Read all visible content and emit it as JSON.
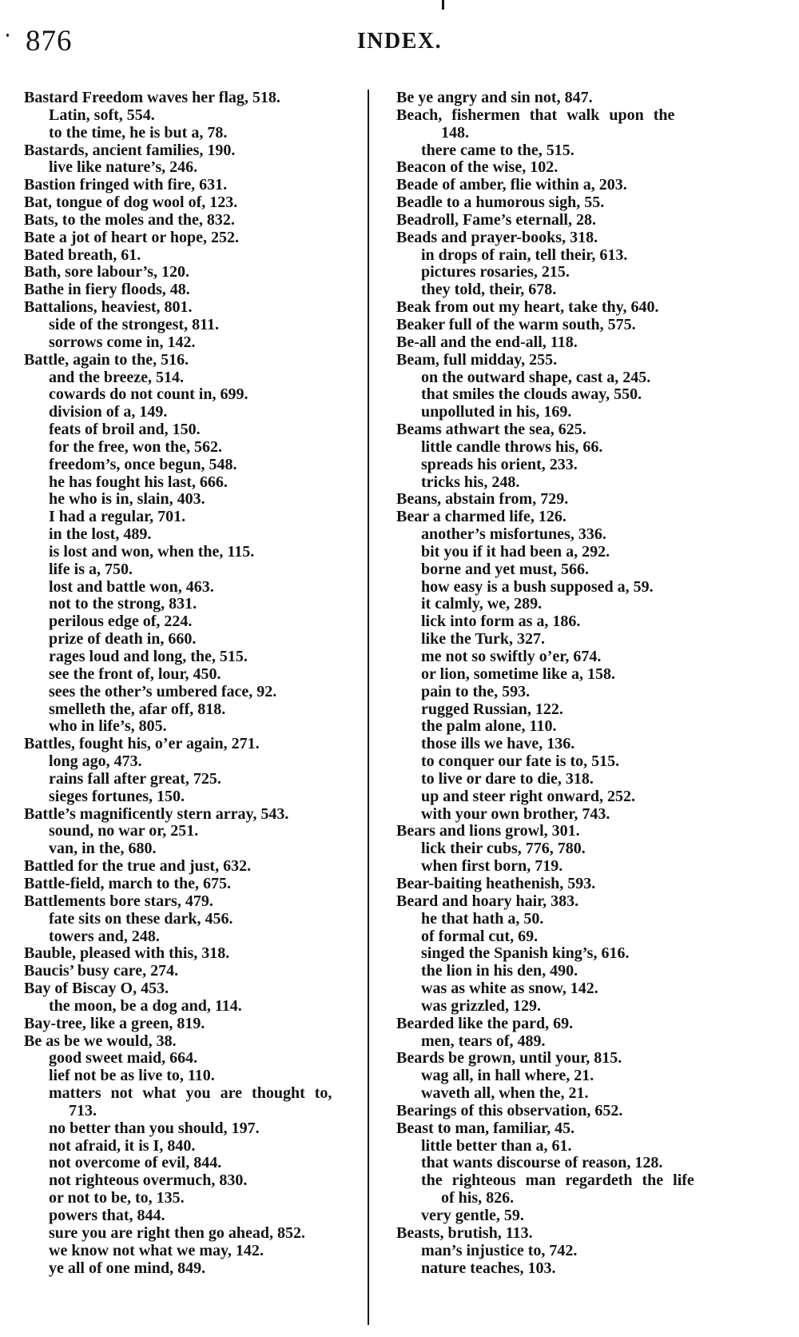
{
  "page": {
    "number": "876",
    "title": "INDEX."
  },
  "columns": {
    "left": [
      {
        "t": "main",
        "text": "Bastard Freedom waves her flag, 518."
      },
      {
        "t": "sub",
        "text": "Latin, soft, 554."
      },
      {
        "t": "sub",
        "text": "to the time, he is but a, 78."
      },
      {
        "t": "main",
        "text": "Bastards, ancient families, 190."
      },
      {
        "t": "sub",
        "text": "live like nature’s, 246."
      },
      {
        "t": "main",
        "text": "Bastion fringed with fire, 631."
      },
      {
        "t": "main",
        "text": "Bat, tongue of dog wool of, 123."
      },
      {
        "t": "main",
        "text": "Bats, to the moles and the, 832."
      },
      {
        "t": "main",
        "text": "Bate a jot of heart or hope, 252."
      },
      {
        "t": "main",
        "text": "Bated breath, 61."
      },
      {
        "t": "main",
        "text": "Bath, sore labour’s, 120."
      },
      {
        "t": "main",
        "text": "Bathe in fiery floods, 48."
      },
      {
        "t": "main",
        "text": "Battalions, heaviest, 801."
      },
      {
        "t": "sub",
        "text": "side of the strongest, 811."
      },
      {
        "t": "sub",
        "text": "sorrows come in, 142."
      },
      {
        "t": "main",
        "text": "Battle, again to the, 516."
      },
      {
        "t": "sub",
        "text": "and the breeze, 514."
      },
      {
        "t": "sub",
        "text": "cowards do not count in, 699."
      },
      {
        "t": "sub",
        "text": "division of a, 149."
      },
      {
        "t": "sub",
        "text": "feats of broil and, 150."
      },
      {
        "t": "sub",
        "text": "for the free, won the, 562."
      },
      {
        "t": "sub",
        "text": "freedom’s, once begun, 548."
      },
      {
        "t": "sub",
        "text": "he has fought his last, 666."
      },
      {
        "t": "sub",
        "text": "he who is in, slain, 403."
      },
      {
        "t": "sub",
        "text": "I had a regular, 701."
      },
      {
        "t": "sub",
        "text": "in the lost, 489."
      },
      {
        "t": "sub",
        "text": "is lost and won, when the, 115."
      },
      {
        "t": "sub",
        "text": "life is a, 750."
      },
      {
        "t": "sub",
        "text": "lost and battle won, 463."
      },
      {
        "t": "sub",
        "text": "not to the strong, 831."
      },
      {
        "t": "sub",
        "text": "perilous edge of, 224."
      },
      {
        "t": "sub",
        "text": "prize of death in, 660."
      },
      {
        "t": "sub",
        "text": "rages loud and long, the, 515."
      },
      {
        "t": "sub",
        "text": "see the front of, lour, 450."
      },
      {
        "t": "sub",
        "text": "sees the other’s umbered face, 92."
      },
      {
        "t": "sub",
        "text": "smelleth the, afar off, 818."
      },
      {
        "t": "sub",
        "text": "who in life’s, 805."
      },
      {
        "t": "main",
        "text": "Battles, fought his, o’er again, 271."
      },
      {
        "t": "sub",
        "text": "long ago, 473."
      },
      {
        "t": "sub",
        "text": "rains fall after great, 725."
      },
      {
        "t": "sub",
        "text": "sieges fortunes, 150."
      },
      {
        "t": "main",
        "text": "Battle’s magnificently stern array, 543."
      },
      {
        "t": "sub",
        "text": "sound, no war or, 251."
      },
      {
        "t": "sub",
        "text": "van, in the, 680."
      },
      {
        "t": "main",
        "text": "Battled for the true and just, 632."
      },
      {
        "t": "main",
        "text": "Battle-field, march to the, 675."
      },
      {
        "t": "main",
        "text": "Battlements bore stars, 479."
      },
      {
        "t": "sub",
        "text": "fate sits on these dark, 456."
      },
      {
        "t": "sub",
        "text": "towers and, 248."
      },
      {
        "t": "main",
        "text": "Bauble, pleased with this, 318."
      },
      {
        "t": "main",
        "text": "Baucis’ busy care, 274."
      },
      {
        "t": "main",
        "text": "Bay of Biscay O, 453."
      },
      {
        "t": "sub",
        "text": "the moon, be a dog and, 114."
      },
      {
        "t": "main",
        "text": "Bay-tree, like a green, 819."
      },
      {
        "t": "main",
        "text": "Be as be we would, 38."
      },
      {
        "t": "sub",
        "text": "good sweet maid, 664."
      },
      {
        "t": "sub",
        "text": "lief not be as live to, 110."
      },
      {
        "t": "sub wide",
        "text": "matters not what you are thought to,"
      },
      {
        "t": "cont",
        "text": "713."
      },
      {
        "t": "sub",
        "text": "no better than you should, 197."
      },
      {
        "t": "sub",
        "text": "not afraid, it is I, 840."
      },
      {
        "t": "sub",
        "text": "not overcome of evil, 844."
      },
      {
        "t": "sub",
        "text": "not righteous overmuch, 830."
      },
      {
        "t": "sub",
        "text": "or not to be, to, 135."
      },
      {
        "t": "sub",
        "text": "powers that, 844."
      },
      {
        "t": "sub",
        "text": "sure you are right then go ahead, 852."
      },
      {
        "t": "sub",
        "text": "we know not what we may, 142."
      },
      {
        "t": "sub",
        "text": "ye all of one mind, 849."
      }
    ],
    "right": [
      {
        "t": "main",
        "text": "Be ye angry and sin not, 847."
      },
      {
        "t": "main wide",
        "text": "Beach, fishermen that walk upon the"
      },
      {
        "t": "cont",
        "text": "148."
      },
      {
        "t": "sub",
        "text": "there came to the, 515."
      },
      {
        "t": "main",
        "text": "Beacon of the wise, 102."
      },
      {
        "t": "main",
        "text": "Beade of amber, flie within a, 203."
      },
      {
        "t": "main",
        "text": "Beadle to a humorous sigh, 55."
      },
      {
        "t": "main",
        "text": "Beadroll, Fame’s eternall, 28."
      },
      {
        "t": "main",
        "text": "Beads and prayer-books, 318."
      },
      {
        "t": "sub",
        "text": "in drops of rain, tell their, 613."
      },
      {
        "t": "sub",
        "text": "pictures rosaries, 215."
      },
      {
        "t": "sub",
        "text": "they told, their, 678."
      },
      {
        "t": "main",
        "text": "Beak from out my heart, take thy, 640."
      },
      {
        "t": "main",
        "text": "Beaker full of the warm south, 575."
      },
      {
        "t": "main",
        "text": "Be-all and the end-all, 118."
      },
      {
        "t": "main",
        "text": "Beam, full midday, 255."
      },
      {
        "t": "sub",
        "text": "on the outward shape, cast a, 245."
      },
      {
        "t": "sub",
        "text": "that smiles the clouds away, 550."
      },
      {
        "t": "sub",
        "text": "unpolluted in his, 169."
      },
      {
        "t": "main",
        "text": "Beams athwart the sea, 625."
      },
      {
        "t": "sub",
        "text": "little candle throws his, 66."
      },
      {
        "t": "sub",
        "text": "spreads his orient, 233."
      },
      {
        "t": "sub",
        "text": "tricks his, 248."
      },
      {
        "t": "main",
        "text": "Beans, abstain from, 729."
      },
      {
        "t": "main",
        "text": "Bear a charmed life, 126."
      },
      {
        "t": "sub",
        "text": "another’s misfortunes, 336."
      },
      {
        "t": "sub",
        "text": "bit you if it had been a, 292."
      },
      {
        "t": "sub",
        "text": "borne and yet must, 566."
      },
      {
        "t": "sub",
        "text": "how easy is a bush supposed a, 59."
      },
      {
        "t": "sub",
        "text": "it calmly, we, 289."
      },
      {
        "t": "sub",
        "text": "lick into form as a, 186."
      },
      {
        "t": "sub",
        "text": "like the Turk, 327."
      },
      {
        "t": "sub",
        "text": "me not so swiftly o’er, 674."
      },
      {
        "t": "sub",
        "text": "or lion, sometime like a, 158."
      },
      {
        "t": "sub",
        "text": "pain to the, 593."
      },
      {
        "t": "sub",
        "text": "rugged Russian, 122."
      },
      {
        "t": "sub",
        "text": "the palm alone, 110."
      },
      {
        "t": "sub",
        "text": "those ills we have, 136."
      },
      {
        "t": "sub",
        "text": "to conquer our fate is to, 515."
      },
      {
        "t": "sub",
        "text": "to live or dare to die, 318."
      },
      {
        "t": "sub",
        "text": "up and steer right onward, 252."
      },
      {
        "t": "sub",
        "text": "with your own brother, 743."
      },
      {
        "t": "main",
        "text": "Bears and lions growl, 301."
      },
      {
        "t": "sub",
        "text": "lick their cubs, 776, 780."
      },
      {
        "t": "sub",
        "text": "when first born, 719."
      },
      {
        "t": "main",
        "text": "Bear-baiting heathenish, 593."
      },
      {
        "t": "main",
        "text": "Beard and hoary hair, 383."
      },
      {
        "t": "sub",
        "text": "he that hath a, 50."
      },
      {
        "t": "sub",
        "text": "of formal cut, 69."
      },
      {
        "t": "sub",
        "text": "singed the Spanish king’s, 616."
      },
      {
        "t": "sub",
        "text": "the lion in his den, 490."
      },
      {
        "t": "sub",
        "text": "was as white as snow, 142."
      },
      {
        "t": "sub",
        "text": "was grizzled, 129."
      },
      {
        "t": "main",
        "text": "Bearded like the pard, 69."
      },
      {
        "t": "sub",
        "text": "men, tears of, 489."
      },
      {
        "t": "main",
        "text": "Beards be grown, until your, 815."
      },
      {
        "t": "sub",
        "text": "wag all, in hall where, 21."
      },
      {
        "t": "sub",
        "text": "waveth all, when the, 21."
      },
      {
        "t": "main",
        "text": "Bearings of this observation, 652."
      },
      {
        "t": "main",
        "text": "Beast to man, familiar, 45."
      },
      {
        "t": "sub",
        "text": "little better than a, 61."
      },
      {
        "t": "sub",
        "text": "that wants discourse of reason, 128."
      },
      {
        "t": "sub wide",
        "text": "the righteous man regardeth the life"
      },
      {
        "t": "cont",
        "text": "of his, 826."
      },
      {
        "t": "sub",
        "text": "very gentle, 59."
      },
      {
        "t": "main",
        "text": "Beasts, brutish, 113."
      },
      {
        "t": "sub",
        "text": "man’s injustice to, 742."
      },
      {
        "t": "sub",
        "text": "nature teaches, 103."
      }
    ]
  }
}
